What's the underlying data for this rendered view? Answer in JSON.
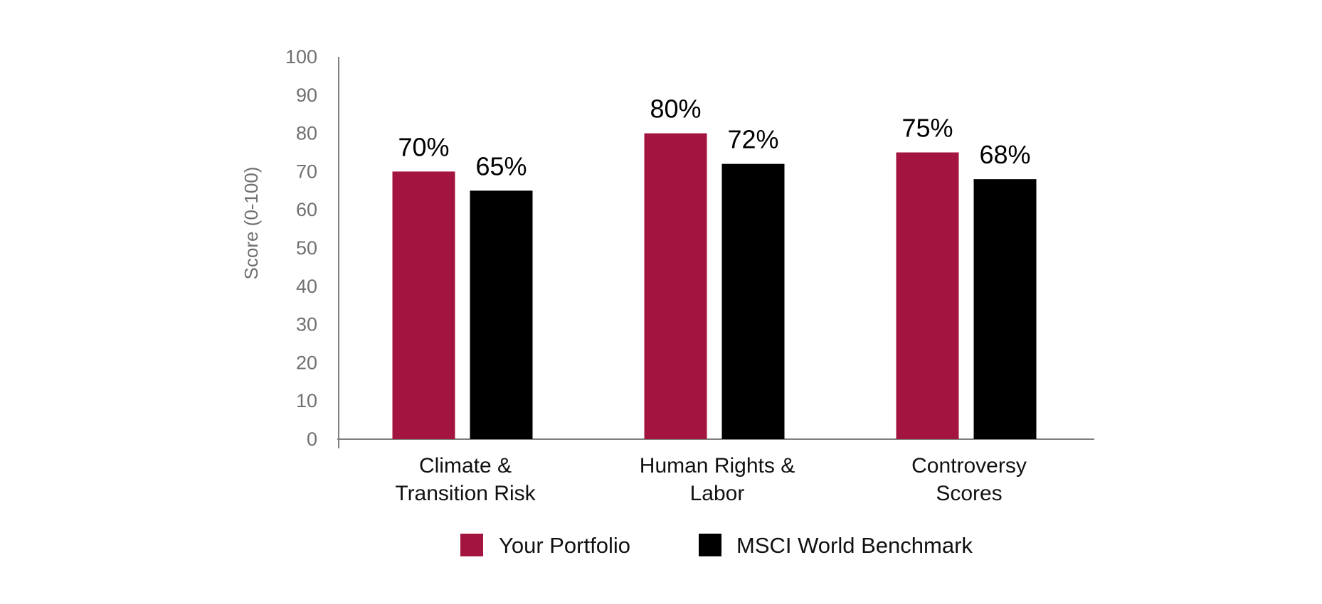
{
  "chart_data": {
    "type": "bar",
    "title": "",
    "xlabel": "",
    "ylabel": "Score (0-100)",
    "ylim": [
      0,
      100
    ],
    "yticks": [
      "0",
      "10",
      "20",
      "30",
      "40",
      "50",
      "60",
      "70",
      "80",
      "90",
      "100"
    ],
    "categories": [
      [
        "Climate &",
        "Transition Risk"
      ],
      [
        "Human Rights &",
        "Labor"
      ],
      [
        "Controversy",
        "Scores"
      ]
    ],
    "series": [
      {
        "name": "Your Portfolio",
        "color": "#a3153f",
        "values": [
          70,
          80,
          75
        ],
        "labels": [
          "70%",
          "80%",
          "75%"
        ]
      },
      {
        "name": "MSCI World Benchmark",
        "color": "#000000",
        "values": [
          65,
          72,
          68
        ],
        "labels": [
          "65%",
          "72%",
          "68%"
        ]
      }
    ],
    "grid": false,
    "legend": "bottom-center"
  }
}
